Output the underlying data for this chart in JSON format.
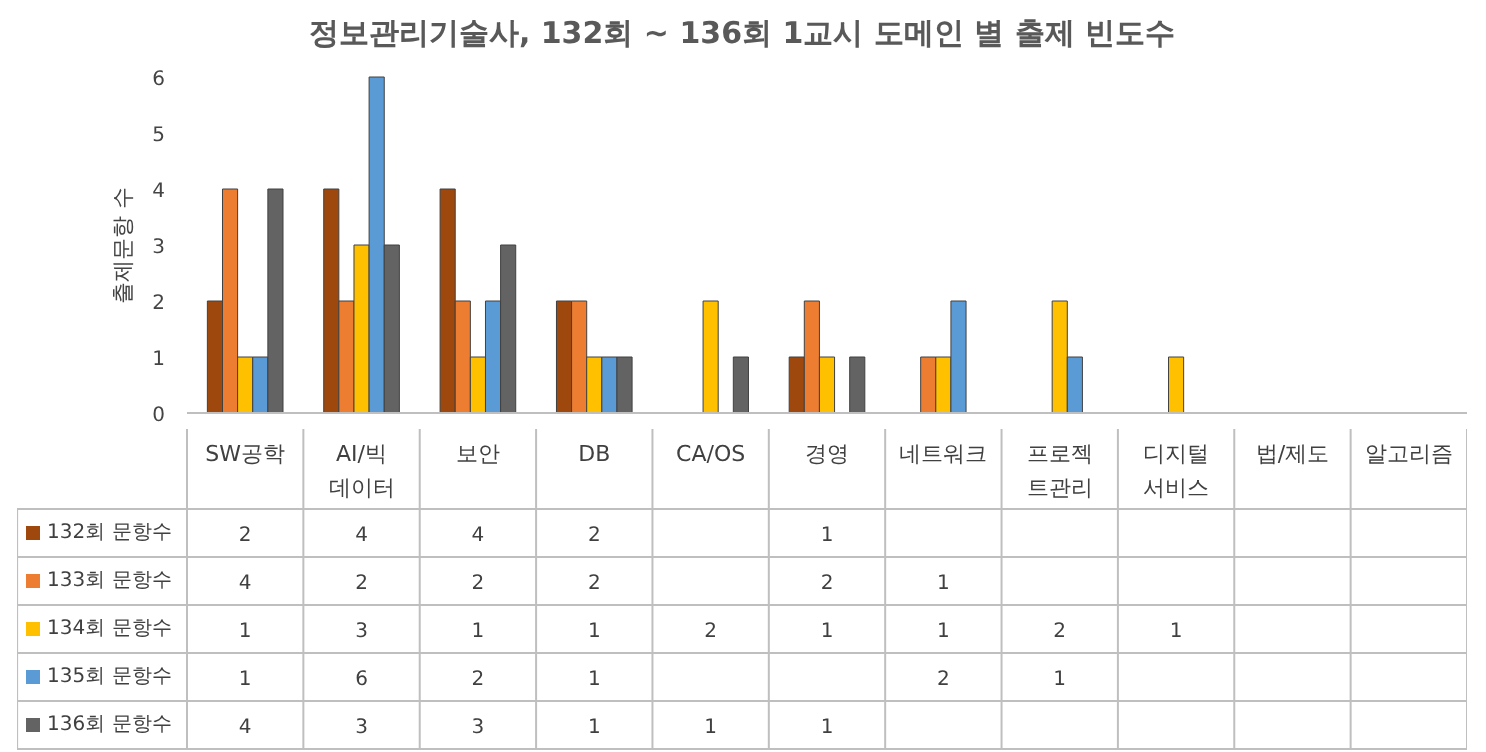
{
  "chart_data": {
    "type": "bar",
    "title": "정보관리기술사, 132회 ~ 136회 1교시 도메인 별 출제 빈도수",
    "ylabel": "출제문항 수",
    "categories": [
      "SW공학",
      "AI/빅데이터",
      "보안",
      "DB",
      "CA/OS",
      "경영",
      "네트워크",
      "프로젝트관리",
      "디지털서비스",
      "법/제도",
      "알고리즘"
    ],
    "series": [
      {
        "name": "132회 문항수",
        "color": "#9e480e",
        "values": [
          2,
          4,
          4,
          2,
          null,
          1,
          null,
          null,
          null,
          null,
          null
        ]
      },
      {
        "name": "133회 문항수",
        "color": "#ed7d31",
        "values": [
          4,
          2,
          2,
          2,
          null,
          2,
          1,
          null,
          null,
          null,
          null
        ]
      },
      {
        "name": "134회 문항수",
        "color": "#ffc000",
        "values": [
          1,
          3,
          1,
          1,
          2,
          1,
          1,
          2,
          1,
          null,
          null
        ]
      },
      {
        "name": "135회 문항수",
        "color": "#5b9bd5",
        "values": [
          1,
          6,
          2,
          1,
          null,
          null,
          2,
          1,
          null,
          null,
          null
        ]
      },
      {
        "name": "136회 문항수",
        "color": "#636363",
        "values": [
          4,
          3,
          3,
          1,
          1,
          1,
          null,
          null,
          null,
          null,
          null
        ]
      }
    ],
    "ylim": [
      0,
      6
    ],
    "yticks": [
      0,
      1,
      2,
      3,
      4,
      5,
      6
    ],
    "grid": false,
    "legend": "bottom",
    "data_labels": true
  }
}
